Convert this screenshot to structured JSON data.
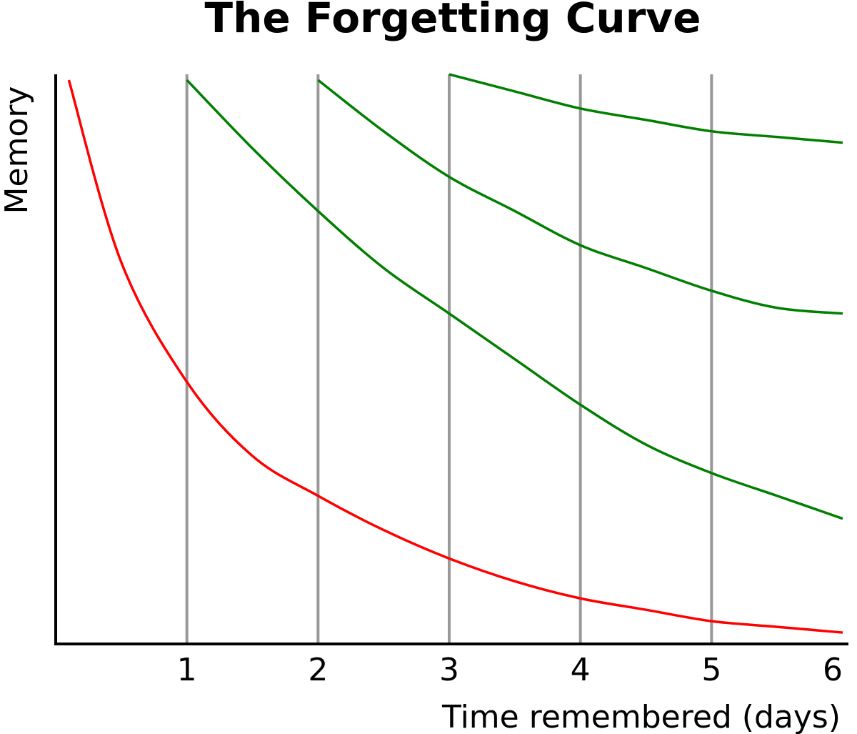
{
  "chart_data": {
    "type": "line",
    "title": "The Forgetting Curve",
    "xlabel": "Time remembered (days)",
    "ylabel": "Memory",
    "xlim": [
      0,
      6
    ],
    "ylim": [
      0,
      1
    ],
    "x_ticks": [
      "1",
      "2",
      "3",
      "4",
      "5",
      "6"
    ],
    "grid": "vertical lines at each day",
    "legend": "none",
    "series": [
      {
        "color": "#ff0000",
        "x": [
          0.1,
          0.5,
          1,
          1.5,
          2,
          2.5,
          3,
          3.5,
          4,
          4.5,
          5,
          5.5,
          6
        ],
        "values": [
          0.99,
          0.67,
          0.46,
          0.33,
          0.26,
          0.2,
          0.15,
          0.11,
          0.08,
          0.06,
          0.04,
          0.03,
          0.02
        ]
      },
      {
        "color": "#007f00",
        "x": [
          1,
          1.5,
          2,
          2.5,
          3,
          3.5,
          4,
          4.5,
          5,
          5.5,
          6
        ],
        "values": [
          0.99,
          0.87,
          0.76,
          0.66,
          0.58,
          0.5,
          0.42,
          0.35,
          0.3,
          0.26,
          0.22
        ]
      },
      {
        "color": "#007f00",
        "x": [
          2,
          2.5,
          3,
          3.5,
          4,
          4.5,
          5,
          5.5,
          6
        ],
        "values": [
          0.99,
          0.9,
          0.82,
          0.76,
          0.7,
          0.66,
          0.62,
          0.59,
          0.58
        ]
      },
      {
        "color": "#007f00",
        "x": [
          3,
          3.5,
          4,
          4.5,
          5,
          5.5,
          6
        ],
        "values": [
          1.0,
          0.97,
          0.94,
          0.92,
          0.9,
          0.89,
          0.88
        ]
      }
    ]
  }
}
